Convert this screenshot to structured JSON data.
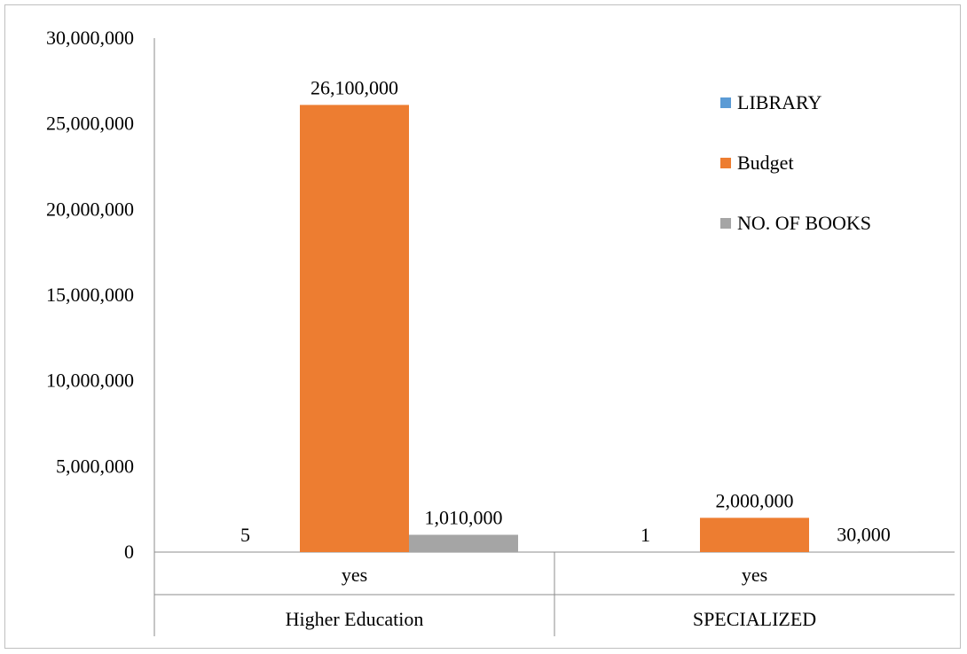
{
  "chart_data": {
    "type": "bar",
    "title": "",
    "xlabel": "",
    "ylabel": "",
    "ylim": [
      0,
      30000000
    ],
    "yticks": [
      0,
      5000000,
      10000000,
      15000000,
      20000000,
      25000000,
      30000000
    ],
    "ytick_labels": [
      "0",
      "5,000,000",
      "10,000,000",
      "15,000,000",
      "20,000,000",
      "25,000,000",
      "30,000,000"
    ],
    "grid": false,
    "legend_position": "top-right",
    "categories": [
      {
        "sub": "yes",
        "group": "Higher Education"
      },
      {
        "sub": "yes",
        "group": "SPECIALIZED"
      }
    ],
    "series": [
      {
        "name": "LIBRARY",
        "color": "#5b9bd5",
        "values": [
          5,
          1
        ],
        "labels": [
          "5",
          "1"
        ]
      },
      {
        "name": "Budget",
        "color": "#ed7d31",
        "values": [
          26100000,
          2000000
        ],
        "labels": [
          "26,100,000",
          "2,000,000"
        ]
      },
      {
        "name": "NO. OF BOOKS",
        "color": "#a5a5a5",
        "values": [
          1010000,
          30000
        ],
        "labels": [
          "1,010,000",
          "30,000"
        ]
      }
    ]
  }
}
